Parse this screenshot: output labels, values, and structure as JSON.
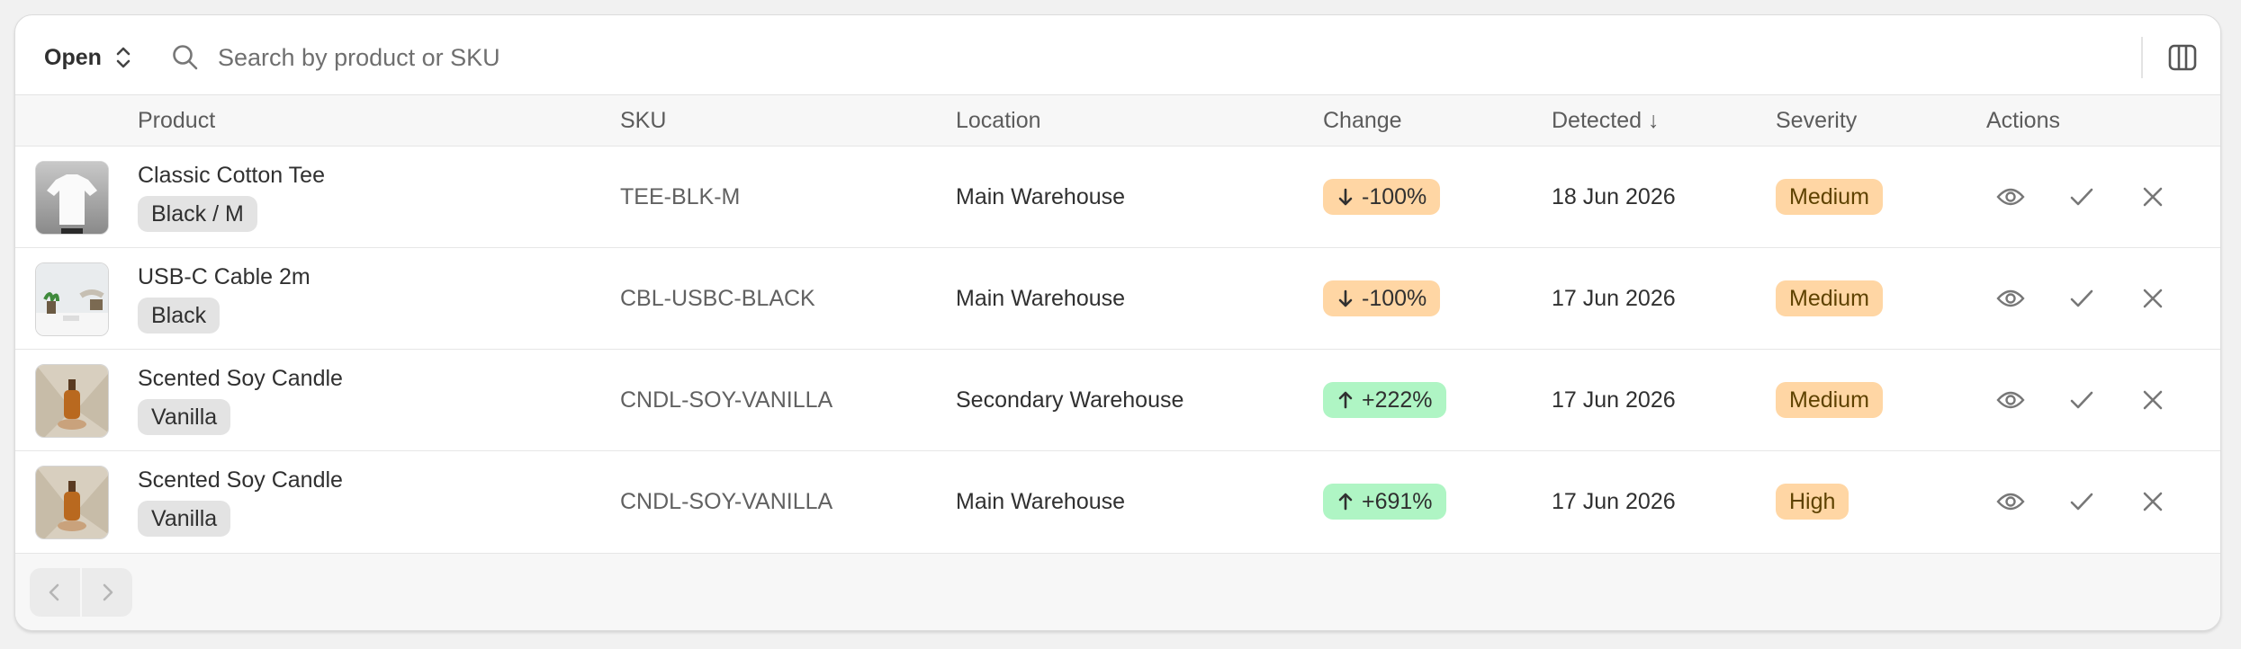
{
  "toolbar": {
    "filter": "Open",
    "search_placeholder": "Search by product or SKU"
  },
  "table": {
    "headers": [
      "Product",
      "SKU",
      "Location",
      "Change",
      "Detected ↓",
      "Severity",
      "Actions"
    ],
    "rows": [
      {
        "product": "Classic Cotton Tee",
        "variant": "Black / M",
        "sku": "TEE-BLK-M",
        "location": "Main Warehouse",
        "change": "-100%",
        "detected": "18 Jun 2026",
        "severity": "Medium"
      },
      {
        "product": "USB-C Cable 2m",
        "variant": "Black",
        "sku": "CBL-USBC-BLACK",
        "location": "Main Warehouse",
        "change": "-100%",
        "detected": "17 Jun 2026",
        "severity": "Medium"
      },
      {
        "product": "Scented Soy Candle",
        "variant": "Vanilla",
        "sku": "CNDL-SOY-VANILLA",
        "location": "Secondary Warehouse",
        "change": "+222%",
        "detected": "17 Jun 2026",
        "severity": "Medium"
      },
      {
        "product": "Scented Soy Candle",
        "variant": "Vanilla",
        "sku": "CNDL-SOY-VANILLA",
        "location": "Main Warehouse",
        "change": "+691%",
        "detected": "17 Jun 2026",
        "severity": "High"
      }
    ]
  }
}
